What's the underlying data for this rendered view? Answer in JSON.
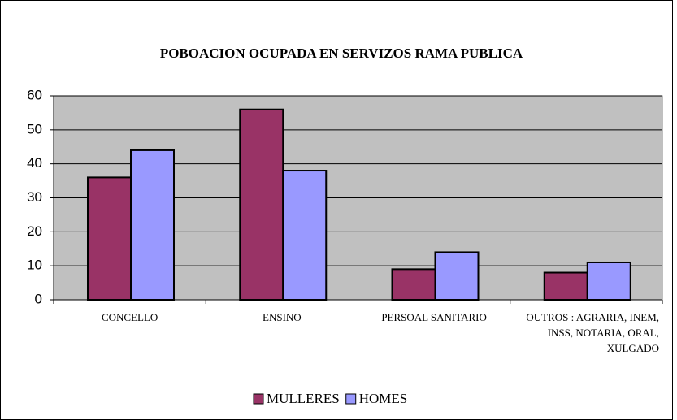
{
  "chart_data": {
    "type": "bar",
    "title": "POBOACION OCUPADA EN SERVIZOS RAMA PUBLICA",
    "categories": [
      "CONCELLO",
      "ENSINO",
      "PERSOAL SANITARIO",
      "OUTROS : AGRARIA, INEM, INSS, NOTARIA, ORAL, XULGADO"
    ],
    "series": [
      {
        "name": "MULLERES",
        "color": "#993366",
        "values": [
          36,
          56,
          9,
          8
        ]
      },
      {
        "name": "HOMES",
        "color": "#9999ff",
        "values": [
          44,
          38,
          14,
          11
        ]
      }
    ],
    "ylim": [
      0,
      60
    ],
    "yticks": [
      0,
      10,
      20,
      30,
      40,
      50,
      60
    ],
    "grid": true,
    "legend": "bottom"
  }
}
